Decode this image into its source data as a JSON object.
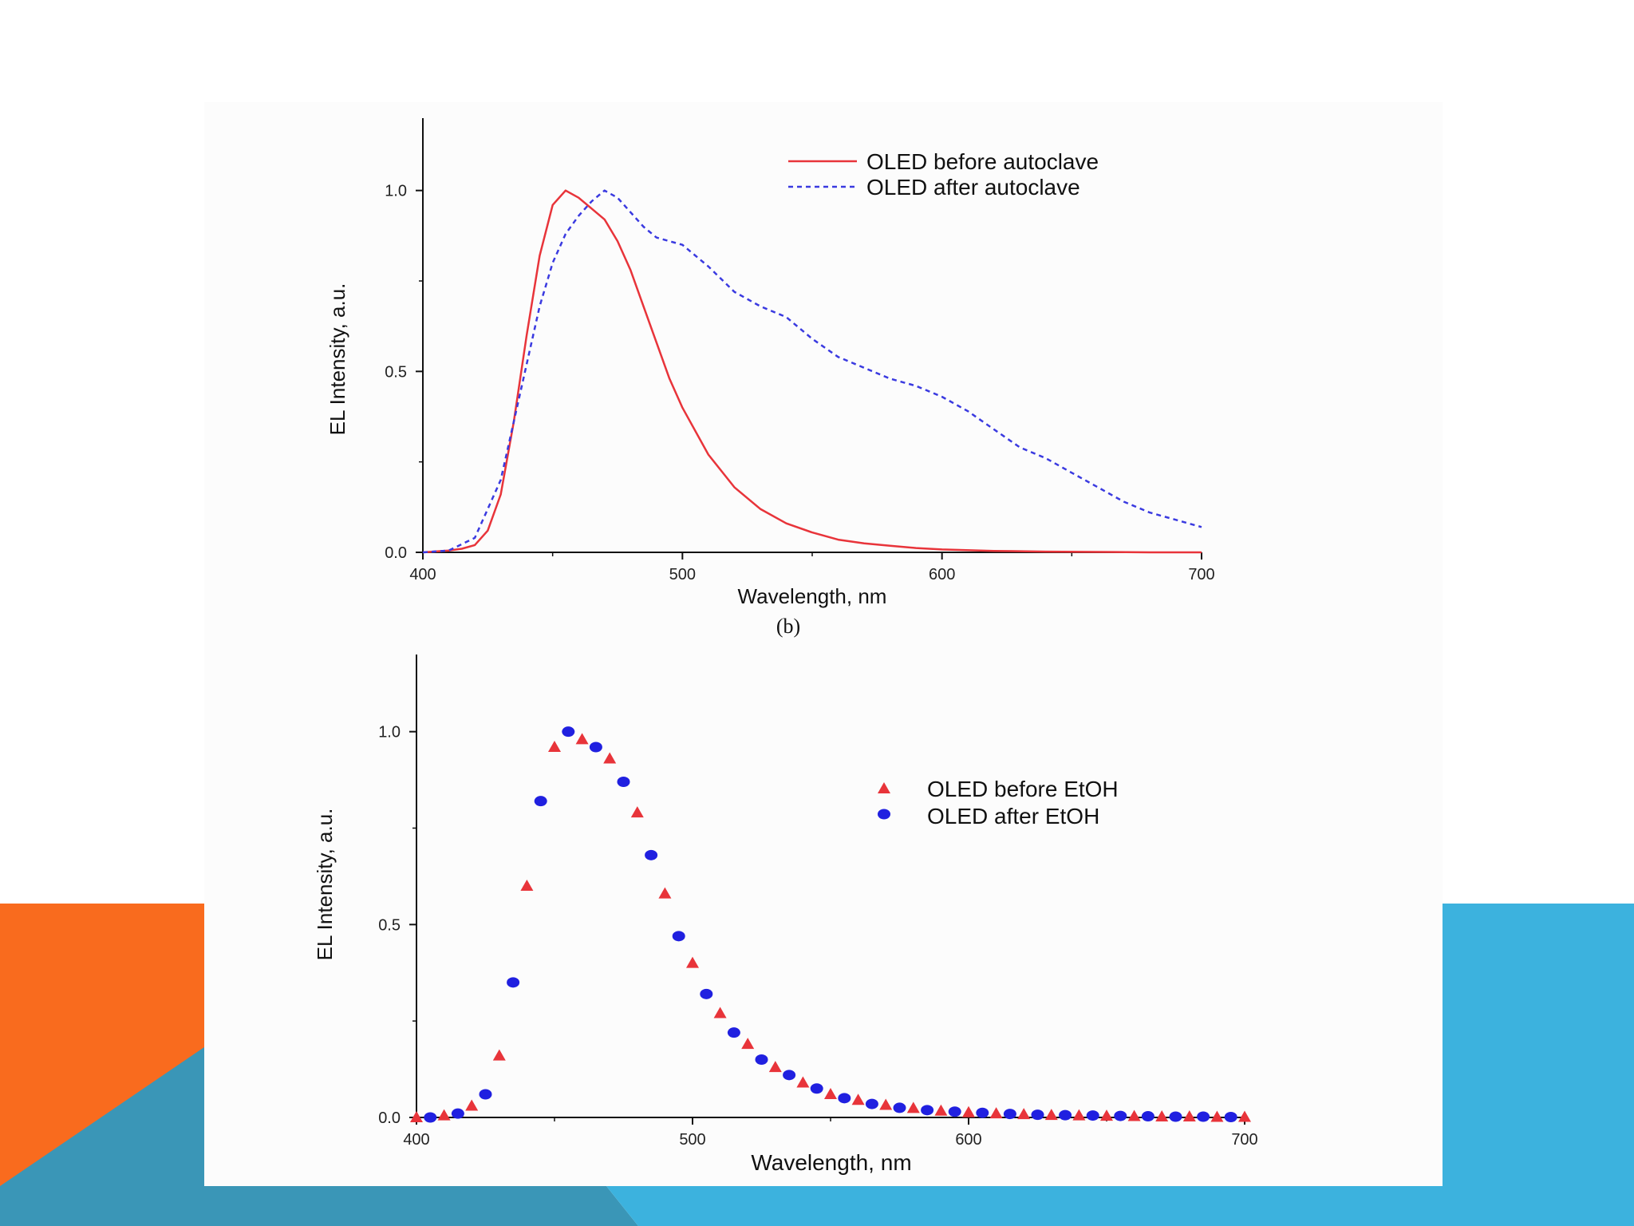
{
  "slide": {
    "accent_orange": "#f96b1e",
    "accent_teal": "#3a96b7",
    "accent_blue": "#3cb2de"
  },
  "chart_data": [
    {
      "type": "line",
      "panel_caption": "(b)",
      "xlabel": "Wavelength, nm",
      "ylabel": "EL Intensity, a.u.",
      "xlim": [
        400,
        700
      ],
      "ylim": [
        0,
        1.2
      ],
      "xticks": [
        400,
        500,
        600,
        700
      ],
      "yticks": [
        0.0,
        0.5,
        1.0
      ],
      "ytick_labels": [
        "0.0",
        "0.5",
        "1.0"
      ],
      "legend_position": "top-right",
      "series": [
        {
          "name": "OLED before autoclave",
          "color": "#e8343a",
          "style": "solid",
          "x": [
            400,
            410,
            415,
            420,
            425,
            430,
            435,
            440,
            445,
            450,
            455,
            460,
            465,
            470,
            475,
            480,
            485,
            490,
            495,
            500,
            510,
            520,
            530,
            540,
            550,
            560,
            570,
            580,
            590,
            600,
            620,
            640,
            660,
            680,
            700
          ],
          "y": [
            0,
            0.005,
            0.01,
            0.02,
            0.06,
            0.16,
            0.36,
            0.6,
            0.82,
            0.96,
            1.0,
            0.98,
            0.95,
            0.92,
            0.86,
            0.78,
            0.68,
            0.58,
            0.48,
            0.4,
            0.27,
            0.18,
            0.12,
            0.08,
            0.055,
            0.035,
            0.025,
            0.018,
            0.012,
            0.008,
            0.004,
            0.002,
            0.001,
            0.0,
            0.0
          ]
        },
        {
          "name": "OLED after autoclave",
          "color": "#3a3ae0",
          "style": "dashed",
          "x": [
            400,
            410,
            420,
            430,
            440,
            445,
            450,
            455,
            460,
            465,
            470,
            475,
            480,
            485,
            490,
            500,
            510,
            520,
            530,
            540,
            550,
            560,
            570,
            580,
            590,
            600,
            610,
            620,
            630,
            640,
            650,
            660,
            670,
            680,
            690,
            700
          ],
          "y": [
            0,
            0.005,
            0.04,
            0.2,
            0.52,
            0.68,
            0.8,
            0.88,
            0.93,
            0.97,
            1.0,
            0.98,
            0.94,
            0.9,
            0.87,
            0.85,
            0.79,
            0.72,
            0.68,
            0.65,
            0.59,
            0.54,
            0.51,
            0.48,
            0.46,
            0.43,
            0.39,
            0.34,
            0.29,
            0.26,
            0.22,
            0.18,
            0.14,
            0.11,
            0.09,
            0.07
          ]
        }
      ]
    },
    {
      "type": "scatter",
      "xlabel": "Wavelength, nm",
      "ylabel": "EL Intensity, a.u.",
      "xlim": [
        400,
        700
      ],
      "ylim": [
        0,
        1.2
      ],
      "xticks": [
        400,
        500,
        600,
        700
      ],
      "yticks": [
        0.0,
        0.5,
        1.0
      ],
      "ytick_labels": [
        "0.0",
        "0.5",
        "1.0"
      ],
      "legend_position": "top-right",
      "series": [
        {
          "name": "OLED before EtOH",
          "color": "#e8343a",
          "marker": "triangle",
          "x": [
            400,
            410,
            420,
            430,
            440,
            450,
            460,
            470,
            480,
            490,
            500,
            510,
            520,
            530,
            540,
            550,
            560,
            570,
            580,
            590,
            600,
            610,
            620,
            630,
            640,
            650,
            660,
            670,
            680,
            690,
            700
          ],
          "y": [
            0,
            0.005,
            0.03,
            0.16,
            0.6,
            0.96,
            0.98,
            0.93,
            0.79,
            0.58,
            0.4,
            0.27,
            0.19,
            0.13,
            0.09,
            0.06,
            0.045,
            0.032,
            0.024,
            0.017,
            0.013,
            0.01,
            0.008,
            0.006,
            0.005,
            0.004,
            0.003,
            0.002,
            0.002,
            0.001,
            0.001
          ]
        },
        {
          "name": "OLED after EtOH",
          "color": "#2020e0",
          "marker": "circle",
          "x": [
            405,
            415,
            425,
            435,
            445,
            455,
            465,
            475,
            485,
            495,
            505,
            515,
            525,
            535,
            545,
            555,
            565,
            575,
            585,
            595,
            605,
            615,
            625,
            635,
            645,
            655,
            665,
            675,
            685,
            695
          ],
          "y": [
            0,
            0.01,
            0.06,
            0.35,
            0.82,
            1.0,
            0.96,
            0.87,
            0.68,
            0.47,
            0.32,
            0.22,
            0.15,
            0.11,
            0.075,
            0.05,
            0.035,
            0.025,
            0.019,
            0.015,
            0.012,
            0.009,
            0.007,
            0.006,
            0.005,
            0.004,
            0.003,
            0.002,
            0.002,
            0.001
          ]
        }
      ]
    }
  ]
}
